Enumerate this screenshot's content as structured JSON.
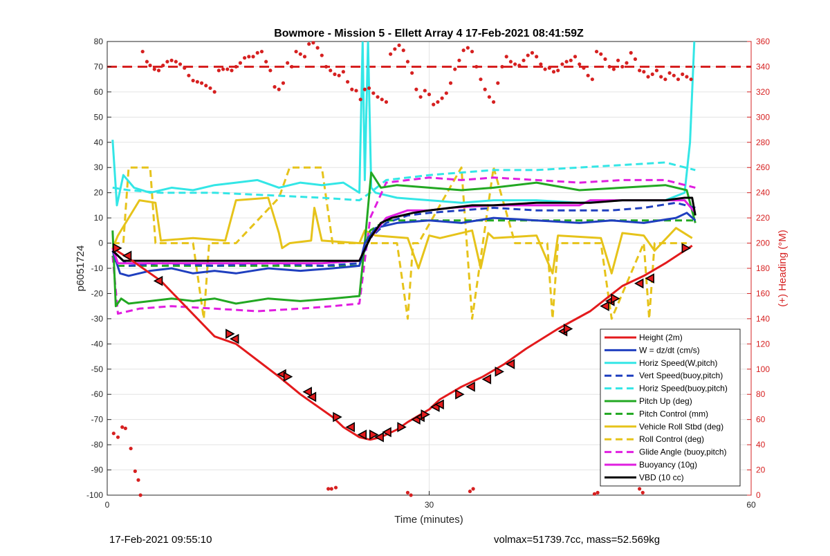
{
  "footer": {
    "left": "17-Feb-2021 09:55:10",
    "right": "volmax=51739.7cc, mass=52.569kg"
  },
  "chart_data": {
    "type": "line",
    "title": "Bowmore - Mission 5 - Ellett Array 4 17-Feb-2021 08:41:59Z",
    "xlabel": "Time (minutes)",
    "ylabel": "p6051724",
    "ylabel_right": "(+) Heading (°M)",
    "xlim": [
      0,
      60
    ],
    "ylim": [
      -100,
      80
    ],
    "ylim_right": [
      0,
      360
    ],
    "xticks": [
      0,
      30,
      60
    ],
    "yticks": [
      -100,
      -90,
      -80,
      -70,
      -60,
      -50,
      -40,
      -30,
      -20,
      -10,
      0,
      10,
      20,
      30,
      40,
      50,
      60,
      70,
      80
    ],
    "yticks_right": [
      0,
      20,
      40,
      60,
      80,
      100,
      120,
      140,
      160,
      180,
      200,
      220,
      240,
      260,
      280,
      300,
      320,
      340,
      360
    ],
    "grid": true,
    "legend_position": "bottom-right",
    "colors": {
      "height": "#e31a1c",
      "w": "#1f3fbf",
      "horiz": "#33e6e6",
      "pitch": "#22a822",
      "roll": "#e6c31a",
      "glide": "#e01ee0",
      "buoy": "#e01ee0",
      "vbd": "#000000",
      "heading": "#d62020"
    },
    "series": [
      {
        "name": "Height (2m)",
        "style": "solid",
        "color": "#e31a1c",
        "x": [
          0.5,
          2,
          5,
          10,
          12,
          16,
          18,
          21,
          22,
          23.5,
          24.5,
          25.5,
          27,
          28,
          30,
          31,
          33,
          35,
          37,
          39,
          42,
          45,
          48,
          50,
          52,
          54.5
        ],
        "y": [
          -2,
          -6,
          -15,
          -37,
          -40,
          -53,
          -60,
          -69,
          -73,
          -77,
          -78,
          -77,
          -74,
          -71,
          -66,
          -62,
          -57,
          -53,
          -48,
          -42,
          -34,
          -27,
          -17,
          -13,
          -8,
          -1
        ]
      },
      {
        "name": "W = dz/dt (cm/s)",
        "style": "solid",
        "color": "#1f3fbf",
        "x": [
          0.5,
          1.2,
          2,
          4,
          6,
          8,
          10,
          12,
          15,
          18,
          21,
          23.5,
          24,
          25,
          27,
          30,
          33,
          36,
          40,
          44,
          47,
          50,
          53,
          54,
          54.8
        ],
        "y": [
          -3,
          -12,
          -13,
          -11,
          -10,
          -12,
          -11,
          -12,
          -10,
          -11,
          -10,
          -9,
          0,
          6,
          8,
          9,
          8,
          10,
          9,
          8,
          9,
          8,
          10,
          12,
          9
        ]
      },
      {
        "name": "Horiz Speed(W,pitch)",
        "style": "solid",
        "color": "#33e6e6",
        "x": [
          0.5,
          0.9,
          1.5,
          2.5,
          4,
          6,
          8,
          10,
          12,
          14,
          16,
          18,
          20,
          22,
          23.5,
          23.8,
          24,
          24.3,
          24.6,
          25,
          27,
          30,
          33,
          36,
          40,
          44,
          48,
          52,
          53.8,
          54.3,
          54.7
        ],
        "y": [
          41,
          15,
          27,
          22,
          20,
          22,
          21,
          23,
          24,
          25,
          22,
          24,
          23,
          24,
          20,
          80,
          25,
          80,
          22,
          20,
          18,
          17,
          16,
          17,
          17,
          16,
          17,
          17,
          20,
          40,
          80
        ]
      },
      {
        "name": "Vert Speed(buoy,pitch)",
        "style": "dashed",
        "color": "#1f3fbf",
        "x": [
          0.5,
          2,
          5,
          10,
          15,
          20,
          23.5,
          24.5,
          26,
          28,
          30,
          33,
          36,
          40,
          44,
          47,
          50,
          53,
          54.8
        ],
        "y": [
          -3,
          -9,
          -8,
          -9,
          -8,
          -9,
          -8,
          2,
          8,
          11,
          12,
          13,
          14,
          13,
          13,
          13,
          14,
          16,
          14
        ]
      },
      {
        "name": "Horiz Speed(buoy,pitch)",
        "style": "dashed",
        "color": "#33e6e6",
        "x": [
          0.5,
          2,
          5,
          10,
          15,
          20,
          23.5,
          24.5,
          26,
          28,
          30,
          33,
          36,
          40,
          44,
          48,
          52,
          54.8
        ],
        "y": [
          22,
          21,
          20,
          20,
          19,
          18,
          17,
          20,
          25,
          26,
          27,
          28,
          29,
          29,
          30,
          31,
          32,
          29
        ]
      },
      {
        "name": "Pitch Up (deg)",
        "style": "solid",
        "color": "#22a822",
        "x": [
          0.5,
          0.8,
          1.3,
          2,
          4,
          6,
          8,
          10,
          12,
          15,
          18,
          21,
          23.5,
          24,
          24.6,
          25.5,
          27,
          30,
          33,
          36,
          40,
          44,
          48,
          52,
          54,
          54.8
        ],
        "y": [
          5,
          -25,
          -22,
          -24,
          -23,
          -22,
          -23,
          -22,
          -24,
          -22,
          -23,
          -22,
          -21,
          0,
          28,
          22,
          23,
          22,
          21,
          22,
          24,
          21,
          22,
          23,
          21,
          8
        ]
      },
      {
        "name": "Pitch Control (mm)",
        "style": "dashed",
        "color": "#22a822",
        "x": [
          0.5,
          1,
          3,
          10,
          15,
          20,
          23.5,
          24.5,
          26,
          30,
          35,
          40,
          45,
          50,
          54.8
        ],
        "y": [
          -5,
          -9,
          -9,
          -9,
          -9,
          -9,
          -9,
          5,
          9,
          9,
          9,
          9,
          9,
          9,
          9
        ]
      },
      {
        "name": "Vehicle Roll Stbd (deg)",
        "style": "solid",
        "color": "#e6c31a",
        "x": [
          0.5,
          1,
          3,
          4.5,
          5,
          8,
          11,
          12,
          15,
          16,
          16.3,
          17,
          19,
          19.3,
          20,
          23.5,
          24,
          25,
          28,
          29,
          30,
          31,
          34,
          34.8,
          35.5,
          36,
          40,
          41.5,
          42,
          46,
          47,
          48,
          50,
          51,
          53,
          54.5
        ],
        "y": [
          -2,
          3,
          17,
          16,
          1,
          2,
          1,
          17,
          18,
          4,
          -2,
          0,
          1,
          14,
          1,
          0,
          5,
          3,
          2,
          -10,
          3,
          2,
          5,
          -10,
          4,
          2,
          3,
          -12,
          3,
          2,
          -12,
          4,
          3,
          -3,
          6,
          2
        ]
      },
      {
        "name": "Roll Control (deg)",
        "style": "dashed",
        "color": "#e6c31a",
        "x": [
          0.5,
          1.5,
          2,
          4,
          4.5,
          8,
          9,
          9.5,
          10,
          12,
          16,
          17,
          20,
          21,
          23.5,
          24,
          27,
          28,
          28.5,
          29,
          33,
          34,
          35,
          36,
          38,
          41,
          41.5,
          42,
          46,
          47,
          50,
          50.5,
          51,
          54
        ],
        "y": [
          0,
          0,
          30,
          30,
          0,
          0,
          -30,
          0,
          0,
          0,
          18,
          30,
          30,
          0,
          0,
          0,
          0,
          -30,
          0,
          0,
          30,
          -30,
          0,
          30,
          0,
          0,
          -30,
          0,
          0,
          -30,
          0,
          -30,
          0,
          0
        ]
      },
      {
        "name": "Glide Angle (buoy,pitch)",
        "style": "dashed",
        "color": "#e01ee0",
        "x": [
          0.5,
          1,
          3,
          6,
          10,
          14,
          18,
          21,
          23.5,
          24.5,
          26,
          28,
          30,
          33,
          36,
          40,
          44,
          48,
          52,
          54.8
        ],
        "y": [
          -5,
          -28,
          -26,
          -25,
          -26,
          -27,
          -26,
          -25,
          -24,
          10,
          24,
          25,
          26,
          25,
          26,
          25,
          24,
          25,
          25,
          22
        ]
      },
      {
        "name": "Buoyancy (10g)",
        "style": "solid",
        "color": "#e01ee0",
        "x": [
          0.5,
          1,
          5,
          10,
          15,
          20,
          23.5,
          24.5,
          26,
          28,
          30,
          32,
          36,
          40,
          44,
          45,
          48,
          52,
          53.8,
          54.8
        ],
        "y": [
          -2,
          -8,
          -8,
          -8,
          -8,
          -8,
          -7,
          2,
          10,
          13,
          13,
          14,
          15,
          15,
          15,
          17,
          17,
          17,
          17,
          12
        ]
      },
      {
        "name": "VBD (10 cc)",
        "style": "solid",
        "color": "#000000",
        "x": [
          0.5,
          1.5,
          5,
          10,
          15,
          20,
          23.5,
          24.5,
          25.5,
          26.5,
          27.5,
          28.5,
          30,
          32,
          34,
          36,
          40,
          44,
          45,
          48,
          52,
          53.8,
          54.5,
          54.8
        ],
        "y": [
          -3,
          -7,
          -7,
          -7,
          -7,
          -7,
          -7,
          2,
          8,
          10,
          11,
          12,
          13,
          14,
          15,
          15,
          16,
          16,
          16,
          17,
          17,
          18,
          18,
          11
        ]
      }
    ],
    "reference_line": {
      "axis": "right",
      "value": 340,
      "style": "dashed",
      "color": "#d62020"
    },
    "heading_points": {
      "color": "#d62020",
      "x": [
        3.3,
        3.7,
        4.0,
        4.4,
        4.8,
        5.2,
        5.6,
        6.0,
        6.4,
        6.8,
        7.2,
        7.6,
        8.0,
        8.4,
        8.8,
        9.2,
        9.6,
        10.0,
        10.4,
        10.8,
        11.2,
        11.6,
        12.0,
        12.4,
        12.8,
        13.2,
        13.6,
        14.0,
        14.4,
        14.8,
        15.2,
        15.6,
        16.0,
        16.4,
        16.8,
        17.2,
        17.6,
        18.0,
        18.4,
        18.8,
        19.2,
        19.6,
        20.0,
        20.4,
        20.8,
        21.2,
        21.6,
        22.0,
        22.4,
        22.8,
        23.2,
        23.6,
        24.0,
        24.4,
        24.8,
        25.2,
        25.6,
        26.0,
        26.4,
        26.8,
        27.2,
        27.6,
        28.0,
        28.4,
        28.8,
        29.2,
        29.6,
        30.0,
        30.4,
        30.8,
        31.2,
        31.6,
        32.0,
        32.4,
        32.8,
        33.2,
        33.6,
        34.0,
        34.4,
        34.8,
        35.2,
        35.6,
        36.0,
        36.4,
        36.8,
        37.2,
        37.6,
        38.0,
        38.4,
        38.8,
        39.2,
        39.6,
        40.0,
        40.4,
        40.8,
        41.2,
        41.6,
        42.0,
        42.4,
        42.8,
        43.2,
        43.6,
        44.0,
        44.4,
        44.8,
        45.2,
        45.6,
        46.0,
        46.4,
        46.8,
        47.2,
        47.6,
        48.0,
        48.4,
        48.8,
        49.2,
        49.6,
        50.0,
        50.4,
        50.8,
        51.2,
        51.6,
        52.0,
        52.4,
        52.8,
        53.2,
        53.6,
        54.0,
        54.4,
        0.6,
        1.0,
        1.4,
        1.7,
        2.2,
        2.6,
        2.9,
        3.1,
        20.6,
        20.9,
        21.3,
        28.0,
        28.3,
        33.8,
        34.1,
        45.4,
        45.7,
        49.6,
        49.9
      ],
      "y": [
        352,
        344,
        341,
        338,
        337,
        341,
        344,
        345,
        344,
        342,
        339,
        333,
        329,
        328,
        327,
        325,
        323,
        320,
        337,
        338,
        338,
        337,
        340,
        343,
        347,
        348,
        348,
        351,
        352,
        344,
        337,
        324,
        322,
        327,
        343,
        340,
        352,
        350,
        348,
        358,
        359,
        355,
        349,
        340,
        337,
        334,
        333,
        336,
        328,
        322,
        321,
        314,
        322,
        323,
        319,
        316,
        314,
        312,
        350,
        354,
        357,
        353,
        344,
        335,
        322,
        316,
        321,
        318,
        310,
        312,
        315,
        319,
        327,
        338,
        345,
        353,
        355,
        352,
        340,
        330,
        322,
        316,
        312,
        327,
        340,
        348,
        344,
        342,
        341,
        345,
        349,
        351,
        348,
        342,
        338,
        339,
        336,
        337,
        342,
        344,
        345,
        348,
        342,
        339,
        333,
        330,
        352,
        350,
        346,
        340,
        338,
        345,
        340,
        343,
        351,
        346,
        337,
        336,
        332,
        334,
        337,
        332,
        330,
        335,
        333,
        330,
        334,
        332,
        330,
        49,
        46,
        54,
        53,
        37,
        19,
        12,
        0,
        5,
        5,
        6,
        2,
        0,
        3,
        5,
        1,
        2,
        5,
        2
      ]
    },
    "height_markers": {
      "x": [
        0.9,
        1.9,
        4.8,
        11.4,
        11.9,
        16.3,
        16.8,
        18.7,
        19.1,
        21.4,
        22.7,
        23.8,
        24.8,
        25.4,
        26.1,
        27.4,
        28.8,
        29.2,
        29.6,
        30.6,
        31.0,
        32.8,
        33.9,
        35.4,
        36.5,
        37.6,
        42.5,
        42.9,
        46.4,
        46.9,
        47.3,
        49.6,
        50.6,
        53.9
      ],
      "y": [
        -2,
        -5,
        -15,
        -36,
        -38,
        -52,
        -53,
        -59,
        -61,
        -69,
        -73,
        -76,
        -76,
        -77,
        -75,
        -73,
        -70,
        -69,
        -68,
        -65,
        -64,
        -60,
        -57,
        -54,
        -51,
        -48,
        -35,
        -34,
        -25,
        -23,
        -22,
        -16,
        -14,
        -2
      ]
    }
  }
}
